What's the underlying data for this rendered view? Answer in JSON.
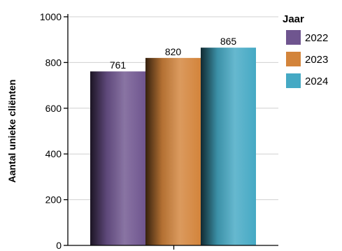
{
  "chart_data": {
    "type": "bar",
    "categories": [
      ""
    ],
    "series": [
      {
        "name": "2022",
        "values": [
          761
        ],
        "color": "#6f558f"
      },
      {
        "name": "2023",
        "values": [
          820
        ],
        "color": "#d3843b"
      },
      {
        "name": "2024",
        "values": [
          865
        ],
        "color": "#45a9c4"
      }
    ],
    "title": "",
    "xlabel": "",
    "ylabel": "Aantal unieke cliënten",
    "ylim": [
      0,
      1000
    ],
    "yticks": [
      0,
      200,
      400,
      600,
      800,
      1000
    ],
    "grid": true,
    "legend": {
      "title": "Jaar",
      "position": "right"
    },
    "data_labels": true
  }
}
